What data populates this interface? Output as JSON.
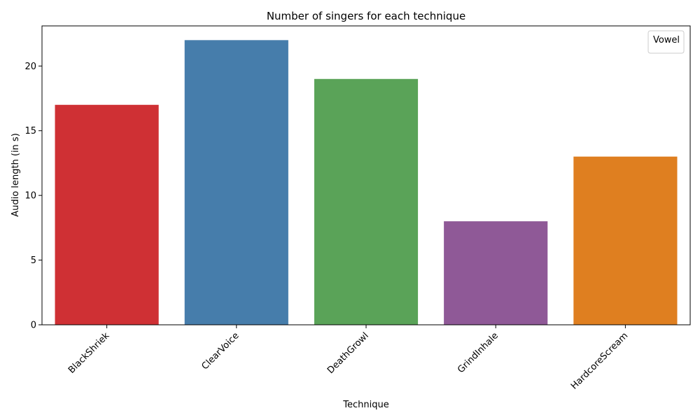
{
  "chart_data": {
    "type": "bar",
    "title": "Number of singers for each technique",
    "xlabel": "Technique",
    "ylabel": "Audio length (in s)",
    "categories": [
      "BlackShriek",
      "ClearVoice",
      "DeathGrowl",
      "GrindInhale",
      "HardcoreScream"
    ],
    "values": [
      17,
      22,
      19,
      8,
      13
    ],
    "colors": [
      "#cf3034",
      "#467dab",
      "#5aa358",
      "#8f5997",
      "#df7f20"
    ],
    "ylim": [
      0,
      23.1
    ],
    "yticks": [
      0,
      5,
      10,
      15,
      20
    ],
    "grid": false,
    "legend": {
      "title": "Vowel",
      "position": "top-right",
      "entries": []
    }
  }
}
